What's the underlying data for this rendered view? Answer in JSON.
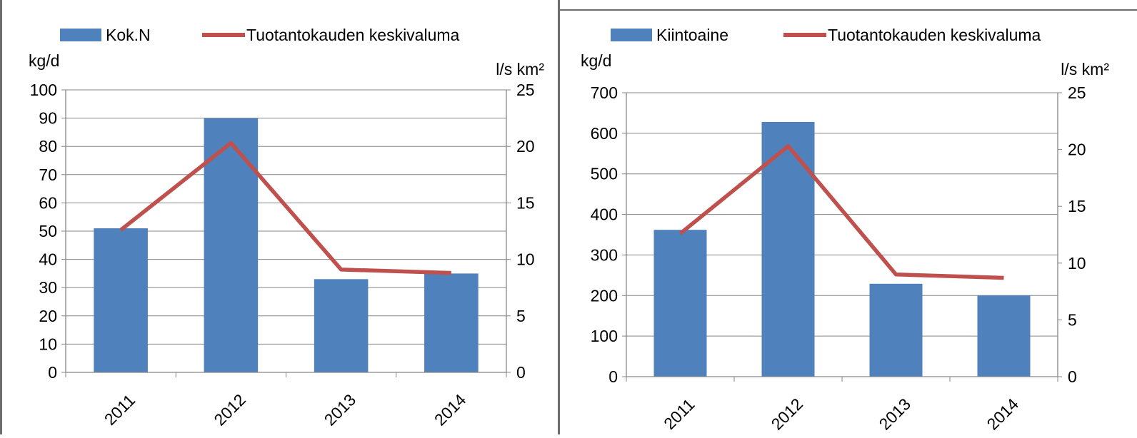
{
  "colors": {
    "bar": "#4F81BD",
    "line": "#C0504D",
    "grid": "#868686",
    "frame": "#6d6d6d"
  },
  "chart_data": [
    {
      "type": "bar",
      "title": "",
      "categories": [
        "2011",
        "2012",
        "2013",
        "2014"
      ],
      "series": [
        {
          "name": "Kok.N",
          "type": "bar",
          "axis": "left",
          "values": [
            51,
            90,
            33,
            35
          ]
        },
        {
          "name": "Tuotantokauden keskivaluma",
          "type": "line",
          "axis": "right",
          "values": [
            12.6,
            20.3,
            9.1,
            8.8
          ]
        }
      ],
      "ylabel": "kg/d",
      "y2label": "l/s km²",
      "ylim": [
        0,
        100
      ],
      "yticks": [
        "0",
        "10",
        "20",
        "30",
        "40",
        "50",
        "60",
        "70",
        "80",
        "90",
        "100"
      ],
      "y2lim": [
        0,
        25
      ],
      "y2ticks": [
        "0",
        "5",
        "10",
        "15",
        "20",
        "25"
      ],
      "grid": true,
      "legend": "top"
    },
    {
      "type": "bar",
      "title": "",
      "categories": [
        "2011",
        "2012",
        "2013",
        "2014"
      ],
      "series": [
        {
          "name": "Kiintoaine",
          "type": "bar",
          "axis": "left",
          "values": [
            362,
            628,
            229,
            200
          ]
        },
        {
          "name": "Tuotantokauden keskivaluma",
          "type": "line",
          "axis": "right",
          "values": [
            12.6,
            20.3,
            9.0,
            8.7
          ]
        }
      ],
      "ylabel": "kg/d",
      "y2label": "l/s km²",
      "ylim": [
        0,
        700
      ],
      "yticks": [
        "0",
        "100",
        "200",
        "300",
        "400",
        "500",
        "600",
        "700"
      ],
      "y2lim": [
        0,
        25
      ],
      "y2ticks": [
        "0",
        "5",
        "10",
        "15",
        "20",
        "25"
      ],
      "grid": true,
      "legend": "top"
    }
  ]
}
